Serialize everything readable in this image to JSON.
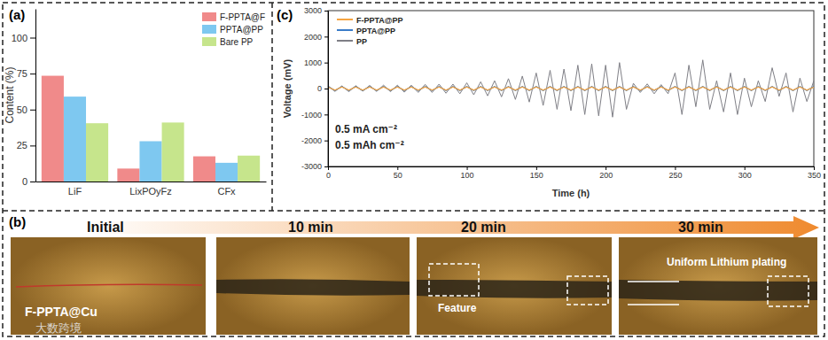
{
  "chart_data": [
    {
      "type": "bar",
      "panel_label": "(a)",
      "y_label": "Content (%)",
      "categories": [
        "LiF",
        "LixPOyFz",
        "CFx"
      ],
      "series": [
        {
          "name": "F-PPTA@F",
          "color": "#f08a8a",
          "values": [
            73.5,
            9,
            17.5
          ]
        },
        {
          "name": "PPTA@PP",
          "color": "#7ec8f0",
          "values": [
            59,
            28,
            13
          ]
        },
        {
          "name": "Bare PP",
          "color": "#c6e58c",
          "values": [
            40.5,
            41,
            18
          ]
        }
      ],
      "ylim": [
        0,
        120
      ],
      "yticks": [
        0,
        25,
        50,
        75,
        100
      ],
      "legend": "top-right"
    },
    {
      "type": "line",
      "panel_label": "(c)",
      "x_label": "Time (h)",
      "y_label": "Voltage (mV)",
      "annotations": [
        "0.5 mA cm⁻²",
        "0.5 mAh cm⁻²"
      ],
      "x": [
        0,
        5,
        10,
        15,
        20,
        25,
        30,
        35,
        40,
        45,
        50,
        55,
        60,
        65,
        70,
        75,
        80,
        85,
        90,
        95,
        100,
        105,
        110,
        115,
        120,
        125,
        130,
        135,
        140,
        145,
        150,
        155,
        160,
        165,
        170,
        175,
        180,
        185,
        190,
        195,
        200,
        205,
        210,
        215,
        220,
        225,
        230,
        235,
        240,
        245,
        250,
        255,
        260,
        265,
        270,
        275,
        280,
        285,
        290,
        295,
        300,
        305,
        310,
        315,
        320,
        325,
        330,
        335,
        340,
        345,
        350
      ],
      "series": [
        {
          "name": "F-PPTA@PP",
          "color": "#f5a442",
          "values": [
            60,
            -60,
            60,
            -60,
            60,
            -60,
            60,
            -60,
            60,
            -60,
            60,
            -60,
            60,
            -60,
            60,
            -60,
            60,
            -60,
            60,
            -60,
            60,
            -60,
            60,
            -60,
            60,
            -60,
            60,
            -60,
            60,
            -60,
            60,
            -60,
            60,
            -60,
            60,
            -60,
            60,
            -60,
            60,
            -60,
            60,
            -60,
            60,
            -60,
            60,
            -60,
            60,
            -60,
            60,
            -60,
            60,
            -60,
            60,
            -60,
            60,
            -60,
            60,
            -60,
            60,
            -60,
            60,
            -60,
            60,
            -60,
            60,
            -60,
            60,
            -60,
            60,
            -60,
            60
          ]
        },
        {
          "name": "PPTA@PP",
          "color": "#3a7cc8",
          "values": [
            80,
            -80,
            80,
            -80,
            80,
            -80,
            80,
            -80,
            80,
            -80,
            80,
            -80,
            80,
            -80,
            80,
            -80,
            80,
            -80,
            80,
            -80,
            80,
            -80,
            80,
            -80,
            80,
            -80,
            80,
            -80,
            80,
            -80,
            80,
            -80,
            80,
            -80,
            80,
            -80,
            80,
            -80,
            80,
            -80,
            80,
            -80,
            80,
            -80,
            80,
            -80,
            80,
            -80,
            80,
            -80,
            80,
            -80,
            80,
            -80,
            80,
            -80,
            80,
            -80,
            80,
            -80,
            80,
            -80,
            80,
            -80,
            80,
            -80,
            80,
            -80,
            80,
            -80,
            80
          ]
        },
        {
          "name": "PP",
          "color": "#7f7f86",
          "values": [
            100,
            -110,
            100,
            -120,
            110,
            -100,
            120,
            -110,
            130,
            -120,
            130,
            -140,
            130,
            -150,
            160,
            -150,
            170,
            -180,
            170,
            -200,
            220,
            -240,
            260,
            -280,
            300,
            -320,
            380,
            -420,
            480,
            -520,
            600,
            -650,
            700,
            -800,
            750,
            -850,
            900,
            -1000,
            950,
            -1050,
            900,
            -1100,
            1000,
            -800,
            200,
            -150,
            180,
            -200,
            150,
            -200,
            600,
            -1000,
            900,
            -700,
            1100,
            -800,
            300,
            -900,
            600,
            -1000,
            400,
            -700,
            300,
            -500,
            800,
            -300,
            600,
            -900,
            400,
            -500,
            300
          ]
        }
      ],
      "xlim": [
        0,
        350
      ],
      "xticks": [
        0,
        50,
        100,
        150,
        200,
        250,
        300,
        350
      ],
      "ylim": [
        -3000,
        3000
      ],
      "yticks": [
        -3000,
        -2000,
        -1000,
        0,
        1000,
        2000,
        3000
      ],
      "legend": "top-left"
    }
  ],
  "micrographs": {
    "panel_label": "(b)",
    "frames": [
      "Initial",
      "10 min",
      "20 min",
      "30 min"
    ],
    "sample": "F-PPTA@Cu",
    "feature": "Feature",
    "plating": "Uniform Lithium plating",
    "watermark": "大数跨境"
  }
}
